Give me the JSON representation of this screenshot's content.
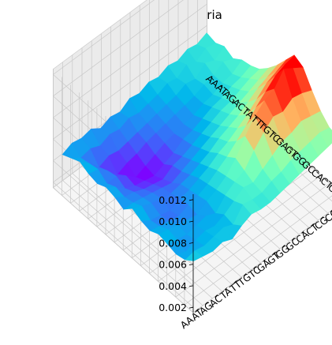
{
  "chart_data": {
    "type": "surface3d",
    "title": "Proteobacteria",
    "xlabel": "",
    "ylabel": "",
    "zlabel": "",
    "x_categories": [
      "AA",
      "AT",
      "AG",
      "AC",
      "TA",
      "TT",
      "TG",
      "TC",
      "GA",
      "GT",
      "GG",
      "GC",
      "CA",
      "CT",
      "CG",
      "CC"
    ],
    "y_categories": [
      "AA",
      "AT",
      "AG",
      "AC",
      "TA",
      "TT",
      "TG",
      "TC",
      "GA",
      "GT",
      "GG",
      "GC",
      "CA",
      "CT",
      "CG",
      "CC"
    ],
    "z_ticks": [
      0.002,
      0.004,
      0.006,
      0.008,
      0.01,
      0.012
    ],
    "zlim": [
      0.0015,
      0.0125
    ],
    "colormap": "rainbow",
    "grid": true,
    "z": [
      [
        0.0046,
        0.005,
        0.0054,
        0.005,
        0.0048,
        0.0052,
        0.005,
        0.0046,
        0.0054,
        0.005,
        0.0048,
        0.0052,
        0.005,
        0.0048,
        0.005,
        0.0056
      ],
      [
        0.005,
        0.0044,
        0.0046,
        0.0048,
        0.0042,
        0.0046,
        0.0044,
        0.0046,
        0.005,
        0.0044,
        0.0046,
        0.005,
        0.0048,
        0.0044,
        0.0052,
        0.0054
      ],
      [
        0.0048,
        0.0046,
        0.0036,
        0.004,
        0.0042,
        0.0038,
        0.0042,
        0.0044,
        0.0046,
        0.0042,
        0.0044,
        0.0048,
        0.0046,
        0.0048,
        0.005,
        0.0052
      ],
      [
        0.005,
        0.0042,
        0.004,
        0.003,
        0.0036,
        0.0034,
        0.0038,
        0.0042,
        0.0044,
        0.004,
        0.0042,
        0.0046,
        0.0048,
        0.005,
        0.0052,
        0.0054
      ],
      [
        0.0044,
        0.0046,
        0.0038,
        0.0034,
        0.0028,
        0.0032,
        0.0036,
        0.004,
        0.0042,
        0.0044,
        0.0046,
        0.0044,
        0.005,
        0.0048,
        0.0054,
        0.005
      ],
      [
        0.0048,
        0.0044,
        0.004,
        0.0036,
        0.0032,
        0.003,
        0.0034,
        0.0038,
        0.0044,
        0.0046,
        0.0048,
        0.005,
        0.0046,
        0.0052,
        0.005,
        0.0056
      ],
      [
        0.0046,
        0.0048,
        0.0042,
        0.004,
        0.0036,
        0.0034,
        0.004,
        0.0042,
        0.0046,
        0.005,
        0.0052,
        0.0054,
        0.0056,
        0.0058,
        0.0062,
        0.006
      ],
      [
        0.0052,
        0.0046,
        0.0044,
        0.0042,
        0.004,
        0.0038,
        0.0042,
        0.0046,
        0.005,
        0.0054,
        0.0058,
        0.006,
        0.0062,
        0.0064,
        0.006,
        0.0058
      ],
      [
        0.005,
        0.0048,
        0.0046,
        0.0044,
        0.0042,
        0.0044,
        0.0046,
        0.005,
        0.0054,
        0.006,
        0.0064,
        0.007,
        0.0066,
        0.0062,
        0.006,
        0.0058
      ],
      [
        0.0054,
        0.005,
        0.0048,
        0.0046,
        0.0044,
        0.0046,
        0.005,
        0.0054,
        0.006,
        0.0064,
        0.0072,
        0.0084,
        0.0078,
        0.0068,
        0.0064,
        0.006
      ],
      [
        0.0052,
        0.0054,
        0.005,
        0.0048,
        0.0046,
        0.005,
        0.0054,
        0.0058,
        0.0064,
        0.007,
        0.008,
        0.0096,
        0.0088,
        0.0074,
        0.0066,
        0.0062
      ],
      [
        0.0056,
        0.0052,
        0.0054,
        0.005,
        0.005,
        0.0054,
        0.0058,
        0.0062,
        0.0068,
        0.0076,
        0.009,
        0.0104,
        0.0096,
        0.008,
        0.007,
        0.0064
      ],
      [
        0.0054,
        0.0058,
        0.0052,
        0.0054,
        0.0052,
        0.0056,
        0.006,
        0.0066,
        0.0074,
        0.0084,
        0.0098,
        0.0108,
        0.0094,
        0.0082,
        0.0072,
        0.0066
      ],
      [
        0.0058,
        0.0054,
        0.006,
        0.0056,
        0.0056,
        0.006,
        0.0064,
        0.007,
        0.008,
        0.0092,
        0.0106,
        0.012,
        0.01,
        0.0086,
        0.0074,
        0.0068
      ],
      [
        0.0056,
        0.006,
        0.0056,
        0.0062,
        0.0058,
        0.0062,
        0.0068,
        0.0074,
        0.0084,
        0.0096,
        0.011,
        0.0114,
        0.0098,
        0.0084,
        0.0076,
        0.007
      ],
      [
        0.006,
        0.0058,
        0.0062,
        0.0058,
        0.0064,
        0.0066,
        0.007,
        0.0078,
        0.0088,
        0.01,
        0.0112,
        0.0108,
        0.0094,
        0.0082,
        0.0074,
        0.0072
      ]
    ]
  }
}
